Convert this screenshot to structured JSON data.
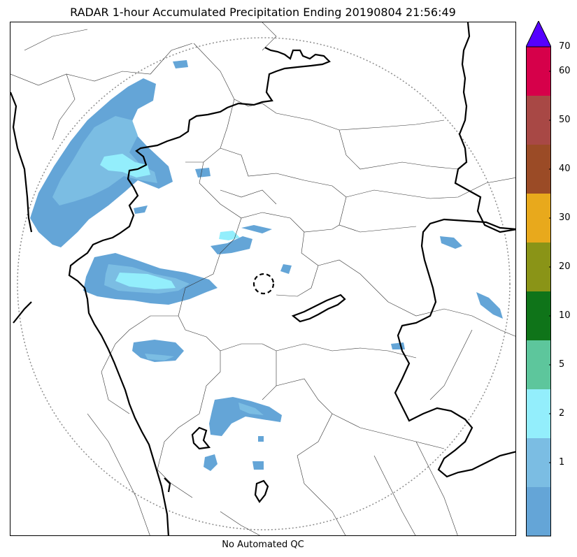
{
  "title": "RADAR 1-hour Accumulated Precipitation Ending 20190804 21:56:49",
  "footer": "No Automated QC",
  "colorbar": {
    "bins": [
      {
        "label": "",
        "color": "#64a5d7"
      },
      {
        "label": "1",
        "color": "#7bbde3"
      },
      {
        "label": "2",
        "color": "#93eefc"
      },
      {
        "label": "5",
        "color": "#5dc69c"
      },
      {
        "label": "10",
        "color": "#0f7419"
      },
      {
        "label": "20",
        "color": "#8a9417"
      },
      {
        "label": "30",
        "color": "#e8a91c"
      },
      {
        "label": "40",
        "color": "#9b4b26"
      },
      {
        "label": "50",
        "color": "#a84845"
      },
      {
        "label": "60",
        "color": "#d6004a"
      }
    ],
    "top_label": "70",
    "extend_color": "#5500ff"
  },
  "colors": {
    "light_rain": "#64a5d7",
    "medium_rain": "#7bbde3",
    "heavy_rain": "#93eefc",
    "range_ring": "#8c8c8c"
  }
}
